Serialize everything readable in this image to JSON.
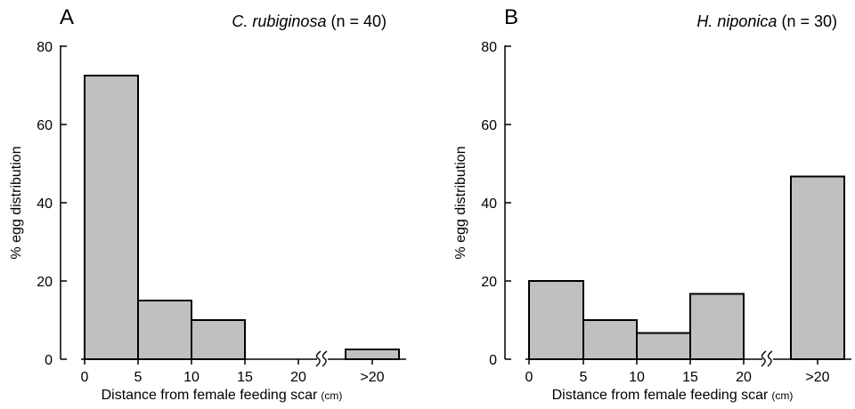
{
  "chart_data": [
    {
      "type": "bar",
      "panel_letter": "A",
      "title_species": "C. rubiginosa",
      "title_n": "(n = 40)",
      "xlabel": "Distance from female feeding scar",
      "xlabel_unit": "(cm)",
      "ylabel": "% egg distribution",
      "ylim": [
        0,
        80
      ],
      "yticks": [
        "0",
        "20",
        "40",
        "60",
        "80"
      ],
      "xticks": [
        "0",
        "5",
        "10",
        "15",
        "20",
        ">20"
      ],
      "categories": [
        "0-5",
        "5-10",
        "10-15",
        "15-20",
        ">20"
      ],
      "values": [
        72.5,
        15,
        10,
        0,
        2.5
      ],
      "axis_break": true,
      "grid": false,
      "bar_color": "#c0c0c0"
    },
    {
      "type": "bar",
      "panel_letter": "B",
      "title_species": "H. niponica",
      "title_n": "(n = 30)",
      "xlabel": "Distance from female feeding scar",
      "xlabel_unit": "(cm)",
      "ylabel": "% egg distribution",
      "ylim": [
        0,
        80
      ],
      "yticks": [
        "0",
        "20",
        "40",
        "60",
        "80"
      ],
      "xticks": [
        "0",
        "5",
        "10",
        "15",
        "20",
        ">20"
      ],
      "categories": [
        "0-5",
        "5-10",
        "10-15",
        "15-20",
        ">20"
      ],
      "values": [
        20,
        10,
        6.7,
        16.7,
        46.7
      ],
      "axis_break": true,
      "grid": false,
      "bar_color": "#c0c0c0"
    }
  ]
}
